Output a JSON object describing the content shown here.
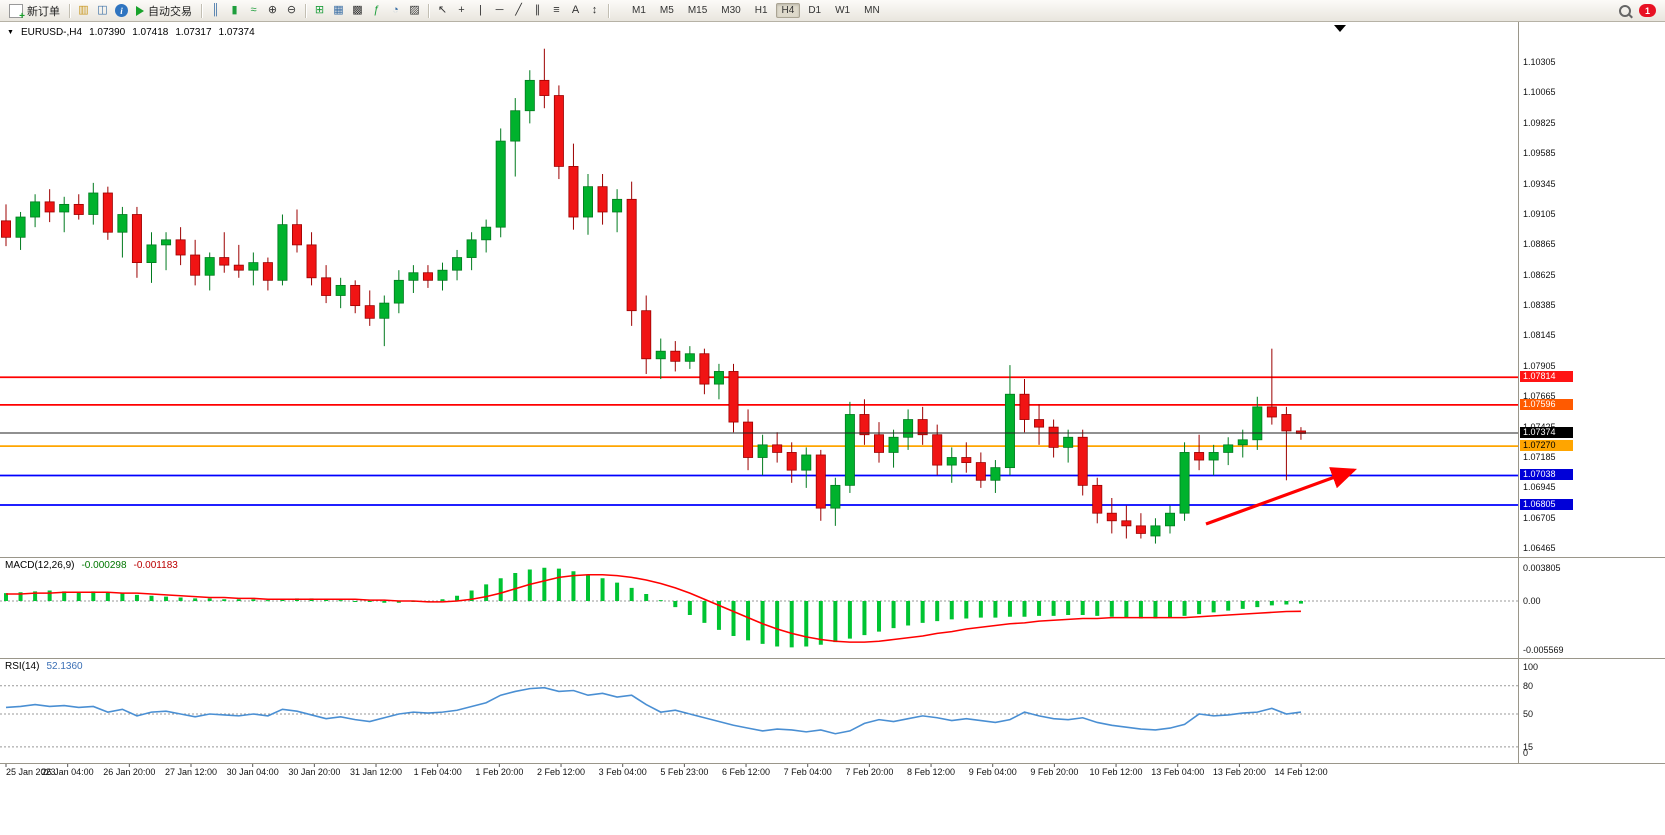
{
  "window": {
    "notification_count": "1"
  },
  "toolbar": {
    "new_order_label": "新订单",
    "autotrading_label": "自动交易",
    "timeframes": [
      "M1",
      "M5",
      "M15",
      "M30",
      "H1",
      "H4",
      "D1",
      "W1",
      "MN"
    ],
    "active_timeframe": "H4"
  },
  "main_chart": {
    "symbol_period": "EURUSD-,H4",
    "ohlc": {
      "open": "1.07390",
      "high": "1.07418",
      "low": "1.07317",
      "close": "1.07374"
    },
    "current_price": {
      "label": "1.07374",
      "value": 1.07374,
      "tag_bg": "#000000",
      "tag_fg": "#ffffff"
    }
  },
  "macd": {
    "label": "MACD(12,26,9)",
    "value_main": "-0.000298",
    "value_signal": "-0.001183"
  },
  "rsi": {
    "label": "RSI(14)",
    "value": "52.1360"
  },
  "colors": {
    "bull": "#00b22d",
    "bull_stroke": "#007a1e",
    "bear": "#f01414",
    "bear_stroke": "#9c0000",
    "macd_hist": "#00c432",
    "macd_signal": "#ff0000",
    "rsi_line": "#4a8fd3",
    "arrow": "#ff0000",
    "level_red": "#ff0000",
    "level_orange": "#ffa500",
    "level_blue": "#0000ff"
  },
  "chart_data": [
    {
      "type": "candlestick",
      "title": "EURUSD- H4",
      "ylim": [
        1.06465,
        1.10305
      ],
      "y_ticks": [
        "1.10305",
        "1.10065",
        "1.09825",
        "1.09585",
        "1.09345",
        "1.09105",
        "1.08865",
        "1.08625",
        "1.08385",
        "1.08145",
        "1.07905",
        "1.07665",
        "1.07425",
        "1.07185",
        "1.06945",
        "1.06705",
        "1.06465"
      ],
      "x_labels": [
        "25 Jan 2023",
        "26 Jan 04:00",
        "26 Jan 20:00",
        "27 Jan 12:00",
        "30 Jan 04:00",
        "30 Jan 20:00",
        "31 Jan 12:00",
        "1 Feb 04:00",
        "1 Feb 20:00",
        "2 Feb 12:00",
        "3 Feb 04:00",
        "5 Feb 23:00",
        "6 Feb 12:00",
        "7 Feb 04:00",
        "7 Feb 20:00",
        "8 Feb 12:00",
        "9 Feb 04:00",
        "9 Feb 20:00",
        "10 Feb 12:00",
        "13 Feb 04:00",
        "13 Feb 20:00",
        "14 Feb 12:00"
      ],
      "levels": [
        {
          "label": "1.07814",
          "value": 1.07814,
          "line_color": "#ff0000",
          "tag_bg": "#ff1414",
          "tag_fg": "#ffffff"
        },
        {
          "label": "1.07596",
          "value": 1.07596,
          "line_color": "#ff0000",
          "tag_bg": "#ff5a00",
          "tag_fg": "#ffffff"
        },
        {
          "label": "1.07270",
          "value": 1.0727,
          "line_color": "#ffa500",
          "tag_bg": "#ffa500",
          "tag_fg": "#000000"
        },
        {
          "label": "1.07038",
          "value": 1.07038,
          "line_color": "#0000ff",
          "tag_bg": "#0000d8",
          "tag_fg": "#ffffff"
        },
        {
          "label": "1.06805",
          "value": 1.06805,
          "line_color": "#0000ff",
          "tag_bg": "#0000d8",
          "tag_fg": "#ffffff"
        }
      ],
      "current_price": 1.07374,
      "annotations": [
        {
          "type": "arrow",
          "direction": "up-right",
          "color": "#ff0000"
        }
      ],
      "candles": [
        [
          1.0905,
          1.0918,
          1.0885,
          1.0892
        ],
        [
          1.0892,
          1.0912,
          1.0882,
          1.0908
        ],
        [
          1.0908,
          1.0926,
          1.09,
          1.092
        ],
        [
          1.092,
          1.093,
          1.0904,
          1.0912
        ],
        [
          1.0912,
          1.0924,
          1.0896,
          1.0918
        ],
        [
          1.0918,
          1.0926,
          1.0906,
          1.091
        ],
        [
          1.091,
          1.0935,
          1.0902,
          1.0927
        ],
        [
          1.0927,
          1.0932,
          1.089,
          1.0896
        ],
        [
          1.0896,
          1.0916,
          1.0876,
          1.091
        ],
        [
          1.091,
          1.0916,
          1.086,
          1.0872
        ],
        [
          1.0872,
          1.0896,
          1.0856,
          1.0886
        ],
        [
          1.0886,
          1.0896,
          1.0866,
          1.089
        ],
        [
          1.089,
          1.09,
          1.087,
          1.0878
        ],
        [
          1.0878,
          1.089,
          1.0854,
          1.0862
        ],
        [
          1.0862,
          1.088,
          1.085,
          1.0876
        ],
        [
          1.0876,
          1.0896,
          1.0864,
          1.087
        ],
        [
          1.087,
          1.0886,
          1.086,
          1.0866
        ],
        [
          1.0866,
          1.088,
          1.0854,
          1.0872
        ],
        [
          1.0872,
          1.0876,
          1.085,
          1.0858
        ],
        [
          1.0858,
          1.091,
          1.0854,
          1.0902
        ],
        [
          1.0902,
          1.0914,
          1.088,
          1.0886
        ],
        [
          1.0886,
          1.0896,
          1.0854,
          1.086
        ],
        [
          1.086,
          1.087,
          1.084,
          1.0846
        ],
        [
          1.0846,
          1.086,
          1.0836,
          1.0854
        ],
        [
          1.0854,
          1.0858,
          1.0832,
          1.0838
        ],
        [
          1.0838,
          1.085,
          1.0822,
          1.0828
        ],
        [
          1.0828,
          1.0846,
          1.0806,
          1.084
        ],
        [
          1.084,
          1.0866,
          1.0832,
          1.0858
        ],
        [
          1.0858,
          1.087,
          1.0848,
          1.0864
        ],
        [
          1.0864,
          1.087,
          1.0852,
          1.0858
        ],
        [
          1.0858,
          1.0872,
          1.085,
          1.0866
        ],
        [
          1.0866,
          1.0882,
          1.0858,
          1.0876
        ],
        [
          1.0876,
          1.0896,
          1.0866,
          1.089
        ],
        [
          1.089,
          1.0906,
          1.088,
          1.09
        ],
        [
          1.09,
          1.0978,
          1.0892,
          1.0968
        ],
        [
          1.0968,
          1.1002,
          1.094,
          1.0992
        ],
        [
          1.0992,
          1.1024,
          1.0982,
          1.1016
        ],
        [
          1.1016,
          1.1041,
          1.0994,
          1.1004
        ],
        [
          1.1004,
          1.1012,
          1.0938,
          1.0948
        ],
        [
          1.0948,
          1.0966,
          1.0898,
          1.0908
        ],
        [
          1.0908,
          1.0942,
          1.0894,
          1.0932
        ],
        [
          1.0932,
          1.0942,
          1.0902,
          1.0912
        ],
        [
          1.0912,
          1.093,
          1.0896,
          1.0922
        ],
        [
          1.0922,
          1.0936,
          1.0822,
          1.0834
        ],
        [
          1.0834,
          1.0846,
          1.0784,
          1.0796
        ],
        [
          1.0796,
          1.0812,
          1.078,
          1.0802
        ],
        [
          1.0802,
          1.081,
          1.0786,
          1.0794
        ],
        [
          1.0794,
          1.0806,
          1.0788,
          1.08
        ],
        [
          1.08,
          1.0804,
          1.0768,
          1.0776
        ],
        [
          1.0776,
          1.0792,
          1.0764,
          1.0786
        ],
        [
          1.0786,
          1.0792,
          1.0738,
          1.0746
        ],
        [
          1.0746,
          1.0756,
          1.0708,
          1.0718
        ],
        [
          1.0718,
          1.0736,
          1.0704,
          1.0728
        ],
        [
          1.0728,
          1.0738,
          1.0714,
          1.0722
        ],
        [
          1.0722,
          1.073,
          1.0698,
          1.0708
        ],
        [
          1.0708,
          1.0726,
          1.0694,
          1.072
        ],
        [
          1.072,
          1.0724,
          1.0668,
          1.0678
        ],
        [
          1.0678,
          1.0702,
          1.0664,
          1.0696
        ],
        [
          1.0696,
          1.0762,
          1.069,
          1.0752
        ],
        [
          1.0752,
          1.0764,
          1.0728,
          1.0736
        ],
        [
          1.0736,
          1.0746,
          1.0714,
          1.0722
        ],
        [
          1.0722,
          1.074,
          1.071,
          1.0734
        ],
        [
          1.0734,
          1.0756,
          1.0724,
          1.0748
        ],
        [
          1.0748,
          1.0758,
          1.0728,
          1.0736
        ],
        [
          1.0736,
          1.0744,
          1.0704,
          1.0712
        ],
        [
          1.0712,
          1.0726,
          1.0698,
          1.0718
        ],
        [
          1.0718,
          1.073,
          1.0706,
          1.0714
        ],
        [
          1.0714,
          1.0722,
          1.0694,
          1.07
        ],
        [
          1.07,
          1.0716,
          1.069,
          1.071
        ],
        [
          1.071,
          1.0791,
          1.0704,
          1.0768
        ],
        [
          1.0768,
          1.078,
          1.0738,
          1.0748
        ],
        [
          1.0748,
          1.076,
          1.0728,
          1.0742
        ],
        [
          1.0742,
          1.0748,
          1.0718,
          1.0726
        ],
        [
          1.0726,
          1.074,
          1.0714,
          1.0734
        ],
        [
          1.0734,
          1.074,
          1.0688,
          1.0696
        ],
        [
          1.0696,
          1.0702,
          1.0666,
          1.0674
        ],
        [
          1.0674,
          1.0686,
          1.0658,
          1.0668
        ],
        [
          1.0668,
          1.068,
          1.0654,
          1.0664
        ],
        [
          1.0664,
          1.0674,
          1.0654,
          1.0658
        ],
        [
          1.0656,
          1.067,
          1.065,
          1.0664
        ],
        [
          1.0664,
          1.068,
          1.0658,
          1.0674
        ],
        [
          1.0674,
          1.073,
          1.0668,
          1.0722
        ],
        [
          1.0722,
          1.0736,
          1.0708,
          1.0716
        ],
        [
          1.0716,
          1.0728,
          1.0704,
          1.0722
        ],
        [
          1.0722,
          1.0734,
          1.0712,
          1.0728
        ],
        [
          1.0728,
          1.074,
          1.0718,
          1.0732
        ],
        [
          1.0732,
          1.0766,
          1.0724,
          1.0758
        ],
        [
          1.0758,
          1.0804,
          1.0744,
          1.075
        ],
        [
          1.0752,
          1.0758,
          1.07,
          1.0739
        ],
        [
          1.0739,
          1.0742,
          1.0732,
          1.0737
        ]
      ]
    },
    {
      "type": "bar",
      "title": "MACD(12,26,9)",
      "ylim": [
        -0.0063,
        0.0048
      ],
      "y_ticks": [
        "0.003805",
        "0.00",
        "-0.005569"
      ],
      "values": [
        0.0009,
        0.001,
        0.0011,
        0.0012,
        0.0011,
        0.001,
        0.0011,
        0.001,
        0.0009,
        0.0007,
        0.0006,
        0.0005,
        0.0004,
        0.0003,
        0.0003,
        0.0002,
        0.0002,
        0.0002,
        0.0001,
        0.0002,
        0.0003,
        0.0003,
        0.0002,
        0.0001,
        0.0,
        -0.0001,
        -0.0002,
        -0.0002,
        -0.0001,
        0.0,
        0.0002,
        0.0006,
        0.0012,
        0.0019,
        0.0026,
        0.0032,
        0.0036,
        0.0038,
        0.0037,
        0.0034,
        0.003,
        0.0026,
        0.0021,
        0.0015,
        0.0008,
        0.0001,
        -0.0007,
        -0.0016,
        -0.0025,
        -0.0033,
        -0.004,
        -0.0045,
        -0.0049,
        -0.0052,
        -0.0053,
        -0.0052,
        -0.005,
        -0.0047,
        -0.0043,
        -0.0039,
        -0.0035,
        -0.0031,
        -0.0028,
        -0.0025,
        -0.0023,
        -0.0021,
        -0.002,
        -0.0019,
        -0.0019,
        -0.0018,
        -0.0018,
        -0.0017,
        -0.0017,
        -0.0016,
        -0.0016,
        -0.0017,
        -0.0018,
        -0.0019,
        -0.002,
        -0.002,
        -0.0019,
        -0.0017,
        -0.0015,
        -0.0013,
        -0.0011,
        -0.0009,
        -0.0007,
        -0.0005,
        -0.0004,
        -0.000298
      ],
      "series": [
        {
          "name": "signal",
          "color": "#ff0000",
          "values": [
            0.0008,
            0.0008,
            0.0009,
            0.0009,
            0.001,
            0.001,
            0.001,
            0.001,
            0.0009,
            0.0009,
            0.0008,
            0.0007,
            0.0006,
            0.0005,
            0.0004,
            0.0004,
            0.0003,
            0.0003,
            0.0002,
            0.0002,
            0.0002,
            0.0002,
            0.0002,
            0.0002,
            0.0002,
            0.0001,
            0.0001,
            0.0,
            0.0,
            -0.0001,
            -0.0001,
            0.0,
            0.0002,
            0.0005,
            0.0009,
            0.0014,
            0.0019,
            0.0023,
            0.0027,
            0.0029,
            0.003,
            0.003,
            0.0029,
            0.0027,
            0.0024,
            0.002,
            0.0015,
            0.0009,
            0.0002,
            -0.0005,
            -0.0012,
            -0.0019,
            -0.0026,
            -0.0032,
            -0.0037,
            -0.0041,
            -0.0044,
            -0.0046,
            -0.0047,
            -0.0047,
            -0.0046,
            -0.0044,
            -0.0042,
            -0.004,
            -0.0037,
            -0.0035,
            -0.0032,
            -0.003,
            -0.0028,
            -0.0026,
            -0.0025,
            -0.0023,
            -0.0022,
            -0.0021,
            -0.002,
            -0.002,
            -0.0019,
            -0.0019,
            -0.0019,
            -0.0019,
            -0.0019,
            -0.0019,
            -0.0018,
            -0.0017,
            -0.0016,
            -0.0015,
            -0.0014,
            -0.0013,
            -0.0012,
            -0.001183
          ]
        }
      ]
    },
    {
      "type": "line",
      "title": "RSI(14)",
      "ylim": [
        0,
        100
      ],
      "y_ticks": [
        "100",
        "80",
        "50",
        "15",
        "0"
      ],
      "levels": [
        80,
        50,
        15
      ],
      "last_value": 52.136,
      "values": [
        57,
        58,
        60,
        58,
        59,
        57,
        58,
        52,
        55,
        48,
        52,
        53,
        50,
        47,
        50,
        49,
        48,
        50,
        48,
        55,
        53,
        49,
        45,
        47,
        44,
        42,
        46,
        50,
        52,
        51,
        52,
        54,
        58,
        62,
        70,
        74,
        77,
        78,
        74,
        75,
        70,
        72,
        68,
        70,
        60,
        52,
        54,
        50,
        46,
        42,
        38,
        35,
        32,
        34,
        33,
        31,
        33,
        29,
        32,
        40,
        44,
        42,
        45,
        48,
        46,
        43,
        45,
        43,
        41,
        44,
        52,
        48,
        45,
        44,
        46,
        41,
        38,
        36,
        34,
        33,
        35,
        39,
        50,
        48,
        49,
        51,
        52,
        56,
        50,
        52.1
      ]
    }
  ]
}
